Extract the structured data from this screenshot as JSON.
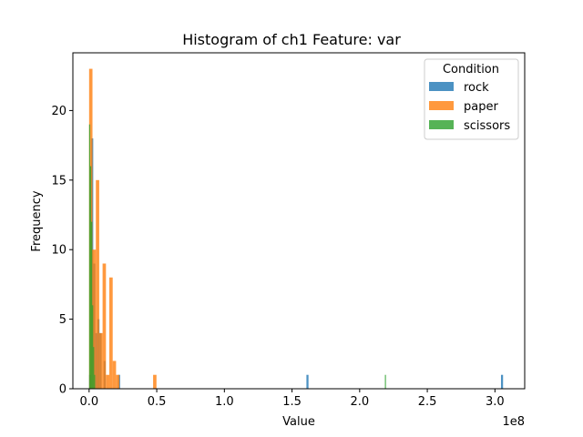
{
  "chart_data": {
    "type": "bar",
    "title": "Histogram of ch1 Feature: var",
    "xlabel": "Value",
    "ylabel": "Frequency",
    "x_offset_label": "1e8",
    "x_scale": 100000000,
    "xlim": [
      -0.12,
      3.22
    ],
    "ylim": [
      0,
      24.15
    ],
    "x_ticks": [
      {
        "value": 0.0,
        "label": "0.0"
      },
      {
        "value": 0.5,
        "label": "0.5"
      },
      {
        "value": 1.0,
        "label": "1.0"
      },
      {
        "value": 1.5,
        "label": "1.5"
      },
      {
        "value": 2.0,
        "label": "2.0"
      },
      {
        "value": 2.5,
        "label": "2.5"
      },
      {
        "value": 3.0,
        "label": "3.0"
      }
    ],
    "y_ticks": [
      {
        "value": 0,
        "label": "0"
      },
      {
        "value": 5,
        "label": "5"
      },
      {
        "value": 10,
        "label": "10"
      },
      {
        "value": 15,
        "label": "15"
      },
      {
        "value": 20,
        "label": "20"
      }
    ],
    "legend": {
      "title": "Condition",
      "position": "top-right"
    },
    "series": [
      {
        "name": "rock",
        "color": "#1f77b4",
        "bins": [
          {
            "start": 0.0,
            "end": 0.0153,
            "count": 1
          },
          {
            "start": 0.0153,
            "end": 0.0306,
            "count": 18
          },
          {
            "start": 0.0306,
            "end": 0.0459,
            "count": 9
          },
          {
            "start": 0.0459,
            "end": 0.0612,
            "count": 4
          },
          {
            "start": 0.0612,
            "end": 0.0765,
            "count": 5
          },
          {
            "start": 0.0765,
            "end": 0.0918,
            "count": 4
          },
          {
            "start": 0.1071,
            "end": 0.1224,
            "count": 2
          },
          {
            "start": 0.2142,
            "end": 0.2295,
            "count": 1
          },
          {
            "start": 1.6065,
            "end": 1.6218,
            "count": 1
          },
          {
            "start": 3.0447,
            "end": 3.06,
            "count": 1
          }
        ]
      },
      {
        "name": "paper",
        "color": "#ff7f0e",
        "bins": [
          {
            "start": 0.0,
            "end": 0.0249,
            "count": 23
          },
          {
            "start": 0.0249,
            "end": 0.0498,
            "count": 10
          },
          {
            "start": 0.0498,
            "end": 0.0747,
            "count": 15
          },
          {
            "start": 0.0747,
            "end": 0.0996,
            "count": 4
          },
          {
            "start": 0.0996,
            "end": 0.1245,
            "count": 9
          },
          {
            "start": 0.1245,
            "end": 0.1494,
            "count": 1
          },
          {
            "start": 0.1494,
            "end": 0.1743,
            "count": 8
          },
          {
            "start": 0.1743,
            "end": 0.1992,
            "count": 2
          },
          {
            "start": 0.1992,
            "end": 0.2241,
            "count": 1
          },
          {
            "start": 0.4731,
            "end": 0.498,
            "count": 1
          }
        ]
      },
      {
        "name": "scissors",
        "color": "#2ca02c",
        "bins": [
          {
            "start": 0.0,
            "end": 0.00732,
            "count": 19
          },
          {
            "start": 0.00732,
            "end": 0.01464,
            "count": 16
          },
          {
            "start": 0.01464,
            "end": 0.02196,
            "count": 12
          },
          {
            "start": 0.02196,
            "end": 0.02928,
            "count": 6
          },
          {
            "start": 0.02928,
            "end": 0.0366,
            "count": 3
          },
          {
            "start": 0.0366,
            "end": 0.04392,
            "count": 1
          },
          {
            "start": 2.1864,
            "end": 2.1937,
            "count": 1
          }
        ]
      }
    ]
  }
}
